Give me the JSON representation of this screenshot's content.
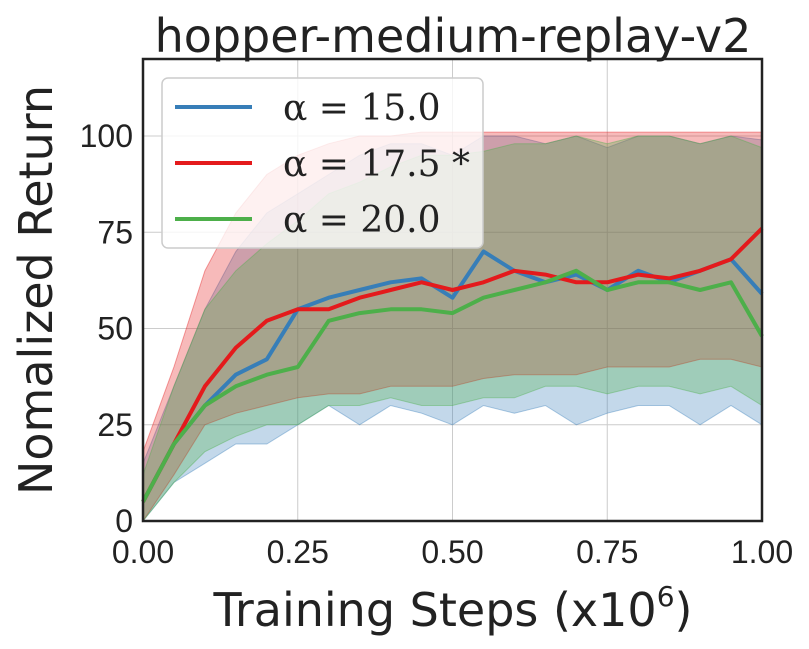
{
  "chart_data": {
    "type": "line",
    "title": "hopper-medium-replay-v2",
    "xlabel": "Training Steps (x10",
    "xlabel_exponent": "6",
    "xlabel_close": ")",
    "ylabel": "Nomalized Return",
    "xlim": [
      0,
      1.0
    ],
    "ylim": [
      0,
      120
    ],
    "xticks": [
      0.0,
      0.25,
      0.5,
      0.75,
      1.0
    ],
    "xtick_labels": [
      "0.00",
      "0.25",
      "0.50",
      "0.75",
      "1.00"
    ],
    "yticks": [
      0,
      25,
      50,
      75,
      100
    ],
    "ytick_labels": [
      "0",
      "25",
      "50",
      "75",
      "100"
    ],
    "grid": true,
    "legend_position": "top-left",
    "x": [
      0.0,
      0.05,
      0.1,
      0.15,
      0.2,
      0.25,
      0.3,
      0.35,
      0.4,
      0.45,
      0.5,
      0.55,
      0.6,
      0.65,
      0.7,
      0.75,
      0.8,
      0.85,
      0.9,
      0.95,
      1.0
    ],
    "series": [
      {
        "name": "α = 15.0",
        "color": "#377eb8",
        "mean": [
          5,
          20,
          30,
          38,
          42,
          55,
          58,
          60,
          62,
          63,
          58,
          70,
          65,
          62,
          64,
          60,
          65,
          62,
          65,
          68,
          59
        ],
        "upper": [
          15,
          35,
          55,
          70,
          80,
          85,
          90,
          95,
          98,
          98,
          95,
          100,
          100,
          98,
          100,
          97,
          100,
          100,
          98,
          100,
          99
        ],
        "lower": [
          0,
          10,
          15,
          20,
          20,
          25,
          30,
          25,
          30,
          28,
          25,
          30,
          28,
          30,
          25,
          28,
          30,
          30,
          25,
          30,
          25
        ]
      },
      {
        "name": "α = 17.5 *",
        "color": "#e41a1c",
        "mean": [
          5,
          20,
          35,
          45,
          52,
          55,
          55,
          58,
          60,
          62,
          60,
          62,
          65,
          64,
          62,
          62,
          64,
          63,
          65,
          68,
          76
        ],
        "upper": [
          18,
          40,
          65,
          80,
          90,
          95,
          98,
          100,
          100,
          101,
          101,
          101,
          101,
          101,
          101,
          101,
          101,
          101,
          101,
          101,
          101
        ],
        "lower": [
          0,
          12,
          25,
          28,
          30,
          32,
          33,
          33,
          35,
          35,
          35,
          37,
          38,
          38,
          38,
          40,
          40,
          40,
          42,
          42,
          40
        ]
      },
      {
        "name": "α = 20.0",
        "color": "#4daf4a",
        "mean": [
          5,
          20,
          30,
          35,
          38,
          40,
          52,
          54,
          55,
          55,
          54,
          58,
          60,
          62,
          65,
          60,
          62,
          62,
          60,
          62,
          48
        ],
        "upper": [
          12,
          35,
          55,
          65,
          72,
          78,
          85,
          88,
          92,
          95,
          95,
          96,
          98,
          98,
          100,
          98,
          100,
          100,
          98,
          100,
          97
        ],
        "lower": [
          0,
          10,
          18,
          22,
          25,
          25,
          30,
          30,
          32,
          30,
          30,
          32,
          32,
          35,
          35,
          33,
          35,
          35,
          33,
          35,
          30
        ]
      }
    ]
  }
}
